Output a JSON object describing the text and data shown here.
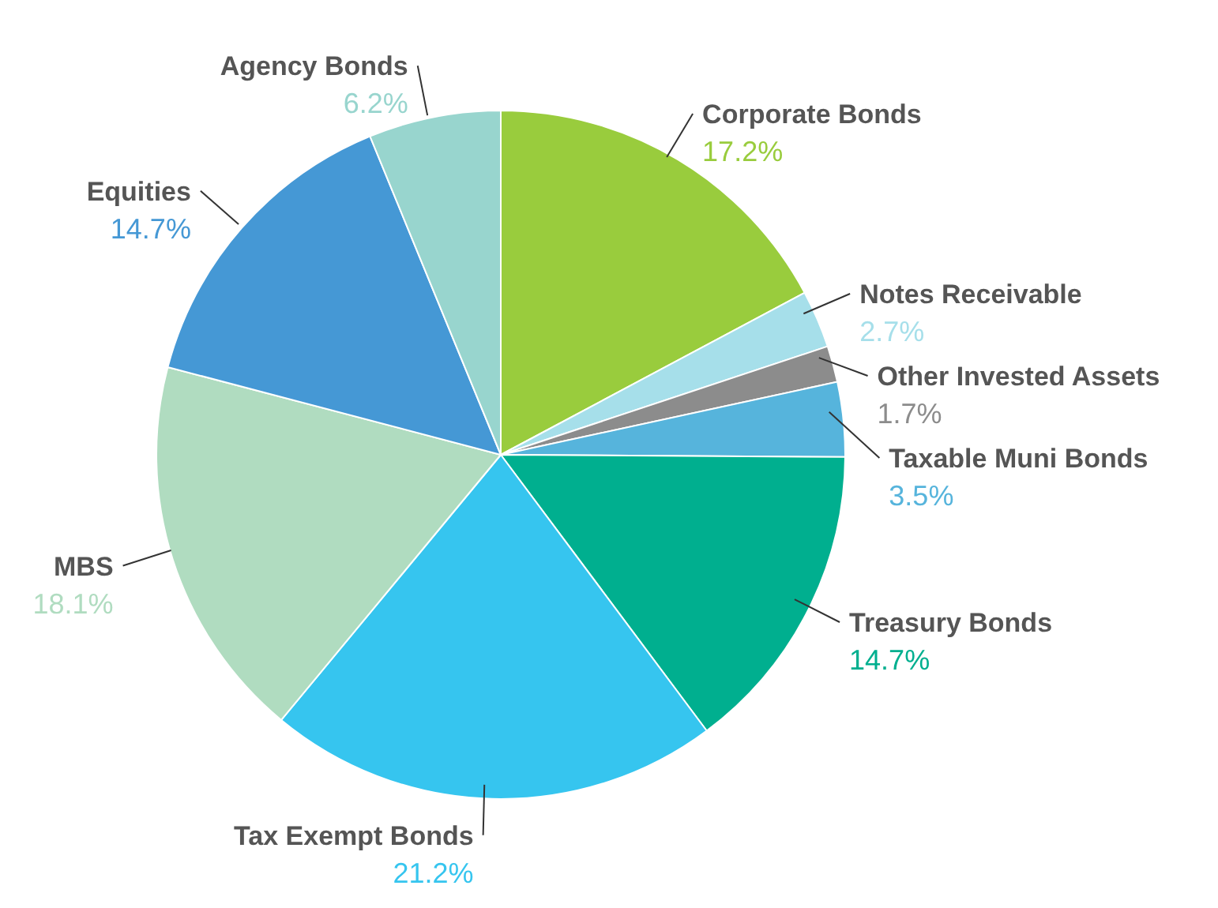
{
  "chart_data": {
    "type": "pie",
    "categories": [
      "Corporate Bonds",
      "Notes Receivable",
      "Other Invested Assets",
      "Taxable Muni Bonds",
      "Treasury Bonds",
      "Tax Exempt Bonds",
      "MBS",
      "Equities",
      "Agency Bonds"
    ],
    "values": [
      17.2,
      2.7,
      1.7,
      3.5,
      14.7,
      21.2,
      18.1,
      14.7,
      6.2
    ],
    "value_labels": [
      "17.2%",
      "2.7%",
      "1.7%",
      "3.5%",
      "14.7%",
      "21.2%",
      "18.1%",
      "14.7%",
      "6.2%"
    ],
    "colors": [
      "#99cc3d",
      "#a6dfea",
      "#8c8c8c",
      "#56b4dc",
      "#00af8f",
      "#36c5ef",
      "#b0dcc0",
      "#4598d5",
      "#98d5ce"
    ]
  }
}
